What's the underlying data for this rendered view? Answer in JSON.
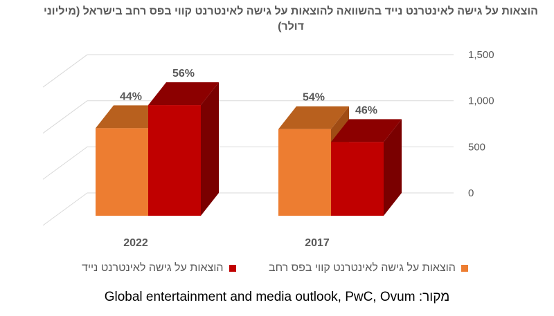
{
  "chart_data": {
    "type": "bar",
    "title": "הוצאות על גישה לאינטרנט נייד בהשוואה להוצאות על גישה לאינטרנט קווי בפס רחב בישראל (מיליוני דולר)",
    "categories": [
      "2022",
      "2017"
    ],
    "series": [
      {
        "name": "הוצאות על גישה לאינטרנט קווי בפס רחב",
        "values": [
          950,
          940
        ],
        "labels": [
          "44%",
          "54%"
        ],
        "color": "#ED7D31",
        "top_color": "#B8601E",
        "side_color": "#A04C14"
      },
      {
        "name": "הוצאות על גישה לאינטרנט נייד",
        "values": [
          1200,
          800
        ],
        "labels": [
          "56%",
          "46%"
        ],
        "color": "#C00000",
        "top_color": "#8C0000",
        "side_color": "#7A0000"
      }
    ],
    "y_ticks": [
      "1,500",
      "1,000",
      "500",
      "0"
    ],
    "y_tick_values": [
      1500,
      1000,
      500,
      0
    ],
    "ylim": [
      0,
      1500
    ],
    "grid": true,
    "legend_position": "bottom"
  },
  "source_text": "Global entertainment and media outlook, PwC, Ovum :מקור"
}
